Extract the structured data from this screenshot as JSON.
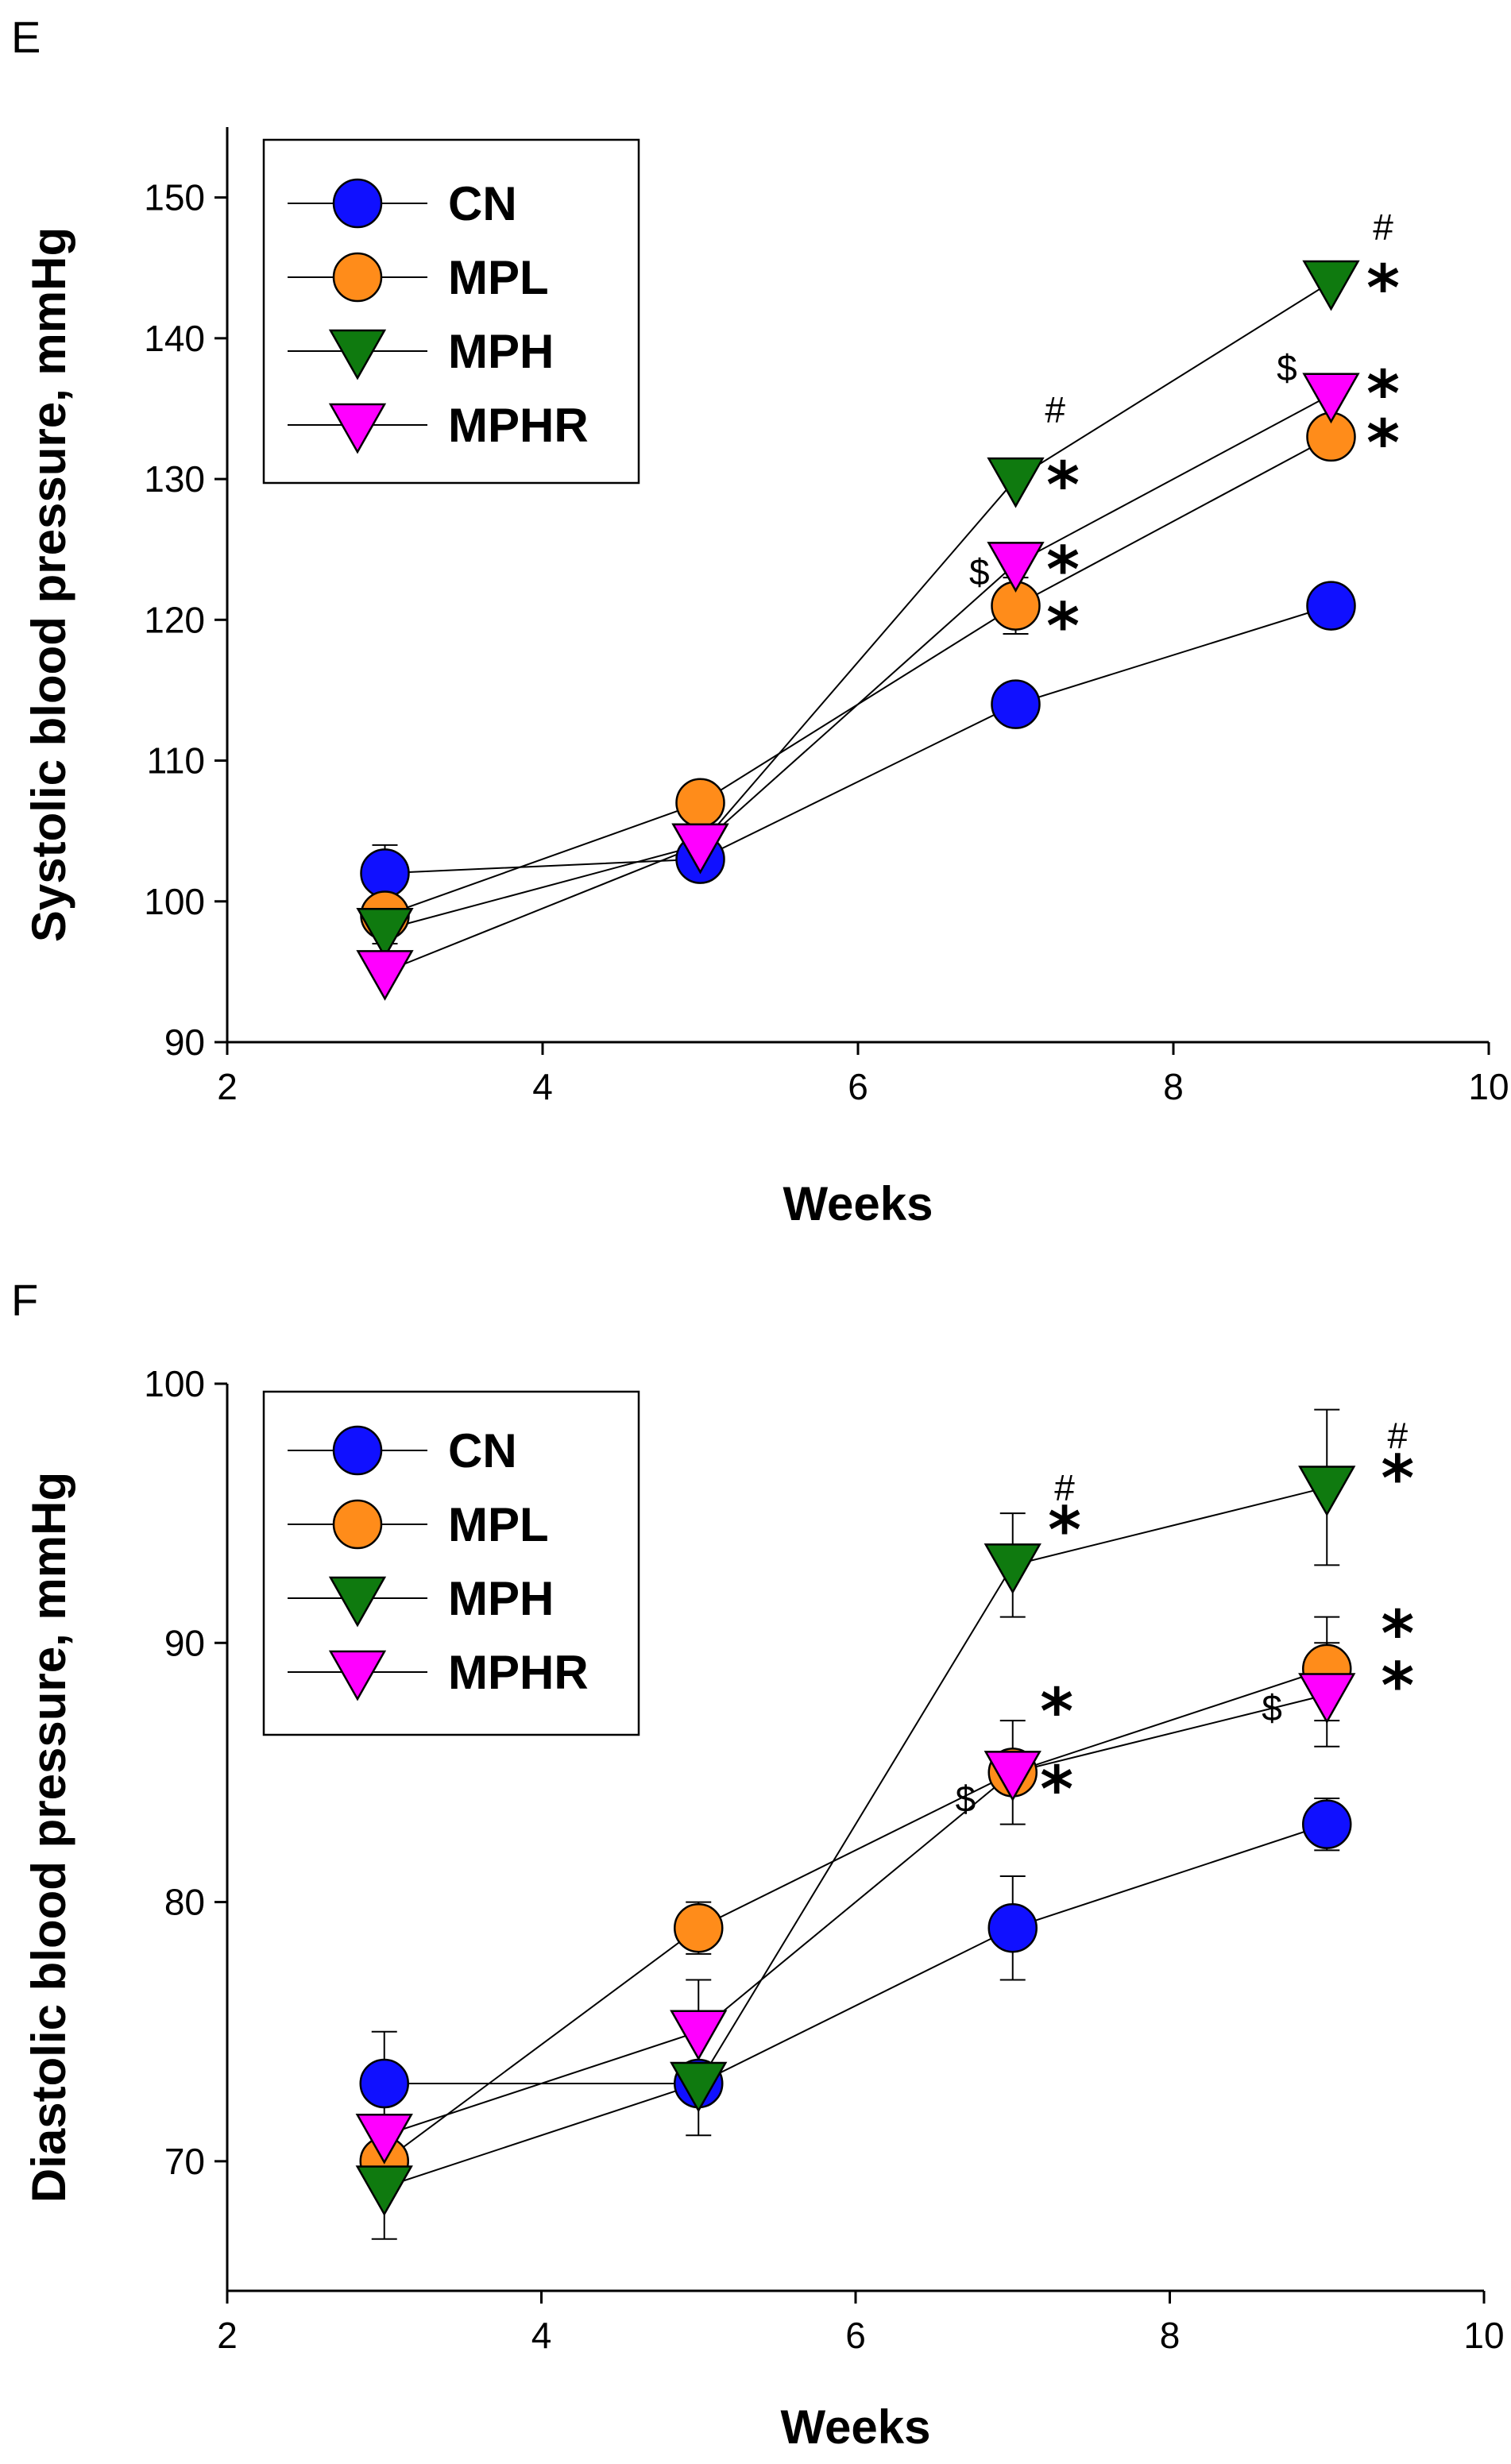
{
  "chart_data": [
    {
      "type": "line",
      "panel": "E",
      "xlabel": "Weeks",
      "ylabel": "Systolic blood pressure, mmHg",
      "xlim": [
        2,
        10
      ],
      "ylim": [
        90,
        155
      ],
      "xticks": [
        2,
        4,
        6,
        8,
        10
      ],
      "yticks": [
        90,
        100,
        110,
        120,
        130,
        140,
        150
      ],
      "legend": {
        "placement": "top-left"
      },
      "series": [
        {
          "name": "CN",
          "marker": "circle",
          "color": "#1010ff",
          "x": [
            3,
            5,
            7,
            9
          ],
          "y": [
            102,
            103,
            114,
            121
          ],
          "err": [
            2,
            1,
            0,
            0
          ]
        },
        {
          "name": "MPL",
          "marker": "circle",
          "color": "#ff8c1a",
          "x": [
            3,
            5,
            7,
            9
          ],
          "y": [
            99,
            107,
            121,
            133
          ],
          "err": [
            1,
            0,
            2,
            0
          ]
        },
        {
          "name": "MPH",
          "marker": "triangle-down",
          "color": "#0f7a0f",
          "x": [
            3,
            5,
            7,
            9
          ],
          "y": [
            98,
            104,
            130,
            144
          ],
          "err": [
            1,
            0,
            0,
            0
          ]
        },
        {
          "name": "MPHR",
          "marker": "triangle-down",
          "color": "#ff00ff",
          "x": [
            3,
            5,
            7,
            9
          ],
          "y": [
            95,
            104,
            124,
            136
          ],
          "err": [
            0,
            0,
            0,
            0
          ]
        }
      ],
      "annotations": [
        {
          "text": "#",
          "x": 7.25,
          "y": 134,
          "kind": "sym"
        },
        {
          "text": "*",
          "x": 7.3,
          "y": 128,
          "kind": "star"
        },
        {
          "text": "$",
          "x": 6.77,
          "y": 122.5,
          "kind": "sym"
        },
        {
          "text": "*",
          "x": 7.3,
          "y": 122,
          "kind": "star"
        },
        {
          "text": "*",
          "x": 7.3,
          "y": 118,
          "kind": "star"
        },
        {
          "text": "#",
          "x": 9.33,
          "y": 147,
          "kind": "sym"
        },
        {
          "text": "*",
          "x": 9.33,
          "y": 142,
          "kind": "star"
        },
        {
          "text": "$",
          "x": 8.72,
          "y": 137,
          "kind": "sym"
        },
        {
          "text": "*",
          "x": 9.33,
          "y": 134.5,
          "kind": "star"
        },
        {
          "text": "*",
          "x": 9.33,
          "y": 131,
          "kind": "star"
        }
      ]
    },
    {
      "type": "line",
      "panel": "F",
      "xlabel": "Weeks",
      "ylabel": "Diastolic blood pressure, mmHg",
      "xlim": [
        2,
        10
      ],
      "ylim": [
        65,
        100
      ],
      "xticks": [
        2,
        4,
        6,
        8,
        10
      ],
      "yticks": [
        70,
        80,
        90,
        100
      ],
      "legend": {
        "placement": "top-left"
      },
      "series": [
        {
          "name": "CN",
          "marker": "circle",
          "color": "#1010ff",
          "x": [
            3,
            5,
            7,
            9
          ],
          "y": [
            73,
            73,
            79,
            83
          ],
          "err": [
            2,
            0,
            2,
            1
          ]
        },
        {
          "name": "MPL",
          "marker": "circle",
          "color": "#ff8c1a",
          "x": [
            3,
            5,
            7,
            9
          ],
          "y": [
            70,
            79,
            85,
            89
          ],
          "err": [
            0,
            1,
            2,
            2
          ]
        },
        {
          "name": "MPH",
          "marker": "triangle-down",
          "color": "#0f7a0f",
          "x": [
            3,
            5,
            7,
            9
          ],
          "y": [
            69,
            73,
            93,
            96
          ],
          "err": [
            2,
            2,
            2,
            3
          ]
        },
        {
          "name": "MPHR",
          "marker": "triangle-down",
          "color": "#ff00ff",
          "x": [
            3,
            5,
            7,
            9
          ],
          "y": [
            71,
            75,
            85,
            88
          ],
          "err": [
            0,
            2,
            0,
            2
          ]
        }
      ],
      "annotations": [
        {
          "text": "#",
          "x": 7.33,
          "y": 95.5,
          "kind": "sym"
        },
        {
          "text": "*",
          "x": 7.33,
          "y": 93.5,
          "kind": "star"
        },
        {
          "text": "*",
          "x": 7.28,
          "y": 86.5,
          "kind": "star"
        },
        {
          "text": "$",
          "x": 6.7,
          "y": 83.5,
          "kind": "sym"
        },
        {
          "text": "*",
          "x": 7.28,
          "y": 83.5,
          "kind": "star"
        },
        {
          "text": "#",
          "x": 9.45,
          "y": 97.5,
          "kind": "sym"
        },
        {
          "text": "*",
          "x": 9.45,
          "y": 95.5,
          "kind": "star"
        },
        {
          "text": "*",
          "x": 9.45,
          "y": 89.5,
          "kind": "star"
        },
        {
          "text": "$",
          "x": 8.65,
          "y": 87,
          "kind": "sym"
        },
        {
          "text": "*",
          "x": 9.45,
          "y": 87.5,
          "kind": "star"
        }
      ]
    }
  ]
}
